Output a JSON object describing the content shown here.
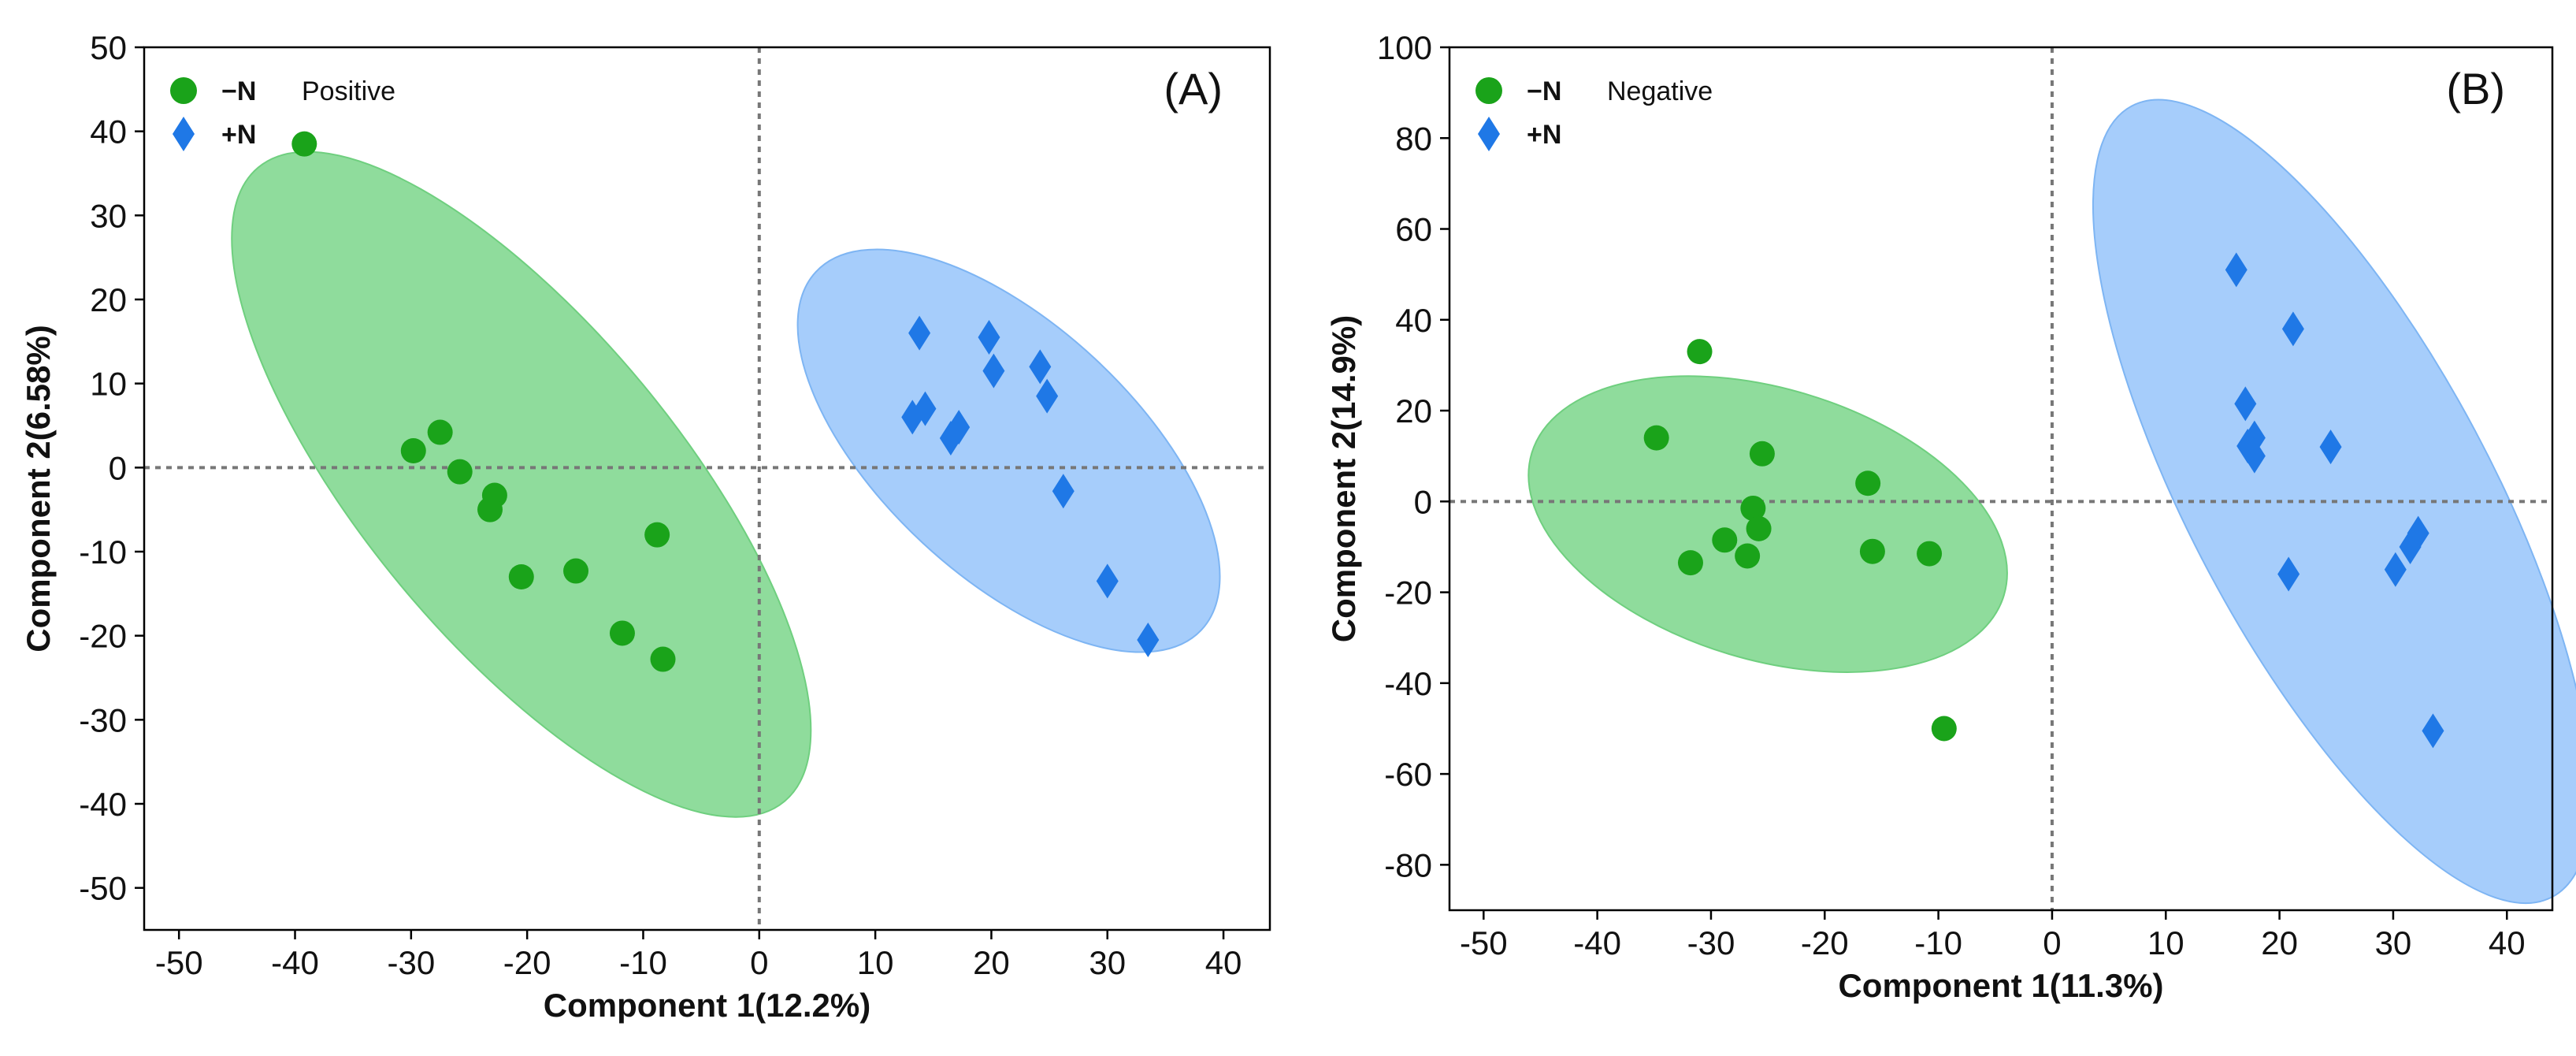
{
  "colors": {
    "minus_n_marker": "#1aa31a",
    "minus_n_ellipse": "#8fdc9c",
    "minus_n_ellipse_stroke": "#6fcf7f",
    "plus_n_marker": "#1f78e6",
    "plus_n_ellipse": "#a6cdfb",
    "plus_n_ellipse_stroke": "#7eb5f3",
    "reference_line": "#777777",
    "axis": "#000000"
  },
  "chart_data": [
    {
      "type": "scatter",
      "panel_label": "(A)",
      "mode_label": "Positive",
      "xlabel": "Component 1(12.2%)",
      "ylabel": "Component 2(6.58%)",
      "xlim": [
        -53,
        44
      ],
      "ylim": [
        -55,
        50
      ],
      "xticks": [
        -50,
        -40,
        -30,
        -20,
        -10,
        0,
        10,
        20,
        30,
        40
      ],
      "yticks": [
        50,
        40,
        30,
        20,
        10,
        0,
        -10,
        -20,
        -30,
        -40,
        -50
      ],
      "reference_lines": {
        "x": 0,
        "y": 0
      },
      "legend_position": "top-left",
      "series": [
        {
          "name": "−N",
          "marker": "circle",
          "ellipse": {
            "cx": -20.5,
            "cy": -2,
            "rx": 44,
            "ry": 14.5,
            "angle_deg": -59
          },
          "points": [
            [
              -39.2,
              38.5
            ],
            [
              -29.8,
              2
            ],
            [
              -27.5,
              4.2
            ],
            [
              -25.8,
              -0.5
            ],
            [
              -22.8,
              -3.3
            ],
            [
              -23.2,
              -5
            ],
            [
              -20.5,
              -13
            ],
            [
              -15.8,
              -12.3
            ],
            [
              -11.8,
              -19.7
            ],
            [
              -8.8,
              -8
            ],
            [
              -8.3,
              -22.8
            ]
          ]
        },
        {
          "name": "+N",
          "marker": "diamond",
          "ellipse": {
            "cx": 21.5,
            "cy": 2,
            "rx": 27,
            "ry": 12,
            "angle_deg": -52
          },
          "points": [
            [
              13.8,
              16
            ],
            [
              19.8,
              15.5
            ],
            [
              24.2,
              12
            ],
            [
              20.2,
              11.5
            ],
            [
              24.8,
              8.5
            ],
            [
              14.3,
              7
            ],
            [
              13.2,
              6
            ],
            [
              17.2,
              4.8
            ],
            [
              16.5,
              3.5
            ],
            [
              26.2,
              -2.8
            ],
            [
              30,
              -13.5
            ],
            [
              33.5,
              -20.5
            ]
          ]
        }
      ]
    },
    {
      "type": "scatter",
      "panel_label": "(B)",
      "mode_label": "Negative",
      "xlabel": "Component 1(11.3%)",
      "ylabel": "Component 2(14.9%)",
      "xlim": [
        -53,
        44
      ],
      "ylim": [
        -90,
        100
      ],
      "xticks": [
        -50,
        -40,
        -30,
        -20,
        -10,
        0,
        10,
        20,
        30,
        40
      ],
      "yticks": [
        100,
        80,
        60,
        40,
        20,
        0,
        -20,
        -40,
        -60,
        -80
      ],
      "reference_lines": {
        "x": 0,
        "y": 0
      },
      "legend_position": "top-left",
      "series": [
        {
          "name": "−N",
          "marker": "circle",
          "ellipse": {
            "cx": -25,
            "cy": -5,
            "rx": 26,
            "ry": 17.5,
            "angle_deg": -37
          },
          "points": [
            [
              -31,
              33
            ],
            [
              -34.8,
              14
            ],
            [
              -25.5,
              10.5
            ],
            [
              -16.2,
              4
            ],
            [
              -26.3,
              -1.5
            ],
            [
              -25.8,
              -6
            ],
            [
              -28.8,
              -8.5
            ],
            [
              -31.8,
              -13.5
            ],
            [
              -26.8,
              -12
            ],
            [
              -15.8,
              -11
            ],
            [
              -10.8,
              -11.5
            ],
            [
              -9.5,
              -50
            ]
          ]
        },
        {
          "name": "+N",
          "marker": "diamond",
          "ellipse": {
            "cx": 25.5,
            "cy": 0,
            "rx": 89,
            "ry": 13.5,
            "angle_deg": -78
          },
          "points": [
            [
              16.2,
              51
            ],
            [
              21.2,
              38
            ],
            [
              17,
              21.5
            ],
            [
              17.8,
              14
            ],
            [
              17.2,
              12.2
            ],
            [
              17.8,
              10
            ],
            [
              24.5,
              12
            ],
            [
              20.8,
              -16
            ],
            [
              30.2,
              -15
            ],
            [
              31.5,
              -10
            ],
            [
              32.2,
              -7
            ],
            [
              33.5,
              -50.5
            ]
          ]
        }
      ]
    }
  ]
}
